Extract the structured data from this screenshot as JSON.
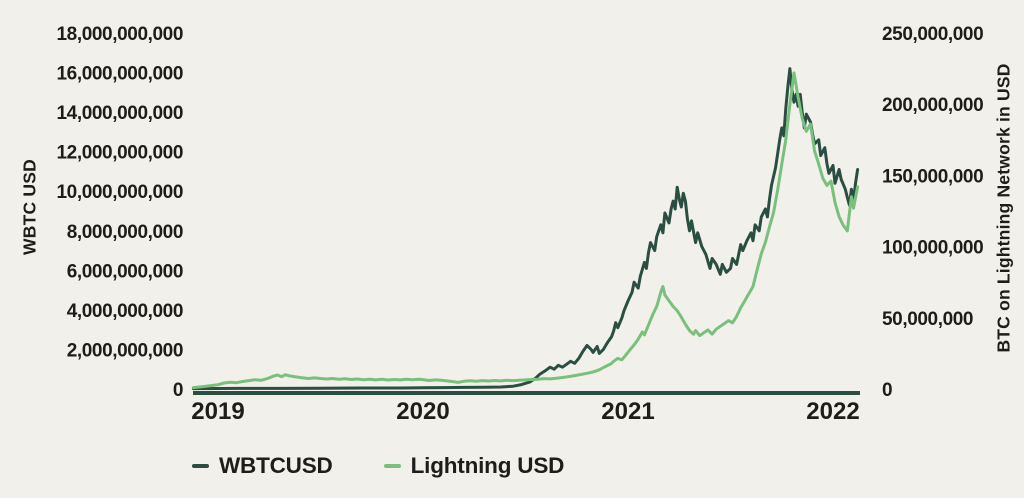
{
  "page": {
    "background_color": "#f2f0ea",
    "text_color": "#1e1d19"
  },
  "chart_data": {
    "type": "line",
    "title": "",
    "grid": false,
    "legend_position": "bottom-left",
    "x_axis": {
      "range": [
        2018.88,
        2022.13
      ],
      "ticks": [
        {
          "value": 2019,
          "label": "2019"
        },
        {
          "value": 2020,
          "label": "2020"
        },
        {
          "value": 2021,
          "label": "2021"
        },
        {
          "value": 2022,
          "label": "2022"
        }
      ]
    },
    "left_axis": {
      "title": "WBTC USD",
      "unit_multiplier": 1000000000,
      "max": 18,
      "ticks": [
        {
          "value": 0,
          "label": "0"
        },
        {
          "value": 2,
          "label": "2,000,000,000"
        },
        {
          "value": 4,
          "label": "4,000,000,000"
        },
        {
          "value": 6,
          "label": "6,000,000,000"
        },
        {
          "value": 8,
          "label": "8,000,000,000"
        },
        {
          "value": 10,
          "label": "10,000,000,000"
        },
        {
          "value": 12,
          "label": "12,000,000,000"
        },
        {
          "value": 14,
          "label": "14,000,000,000"
        },
        {
          "value": 16,
          "label": "16,000,000,000"
        },
        {
          "value": 18,
          "label": "18,000,000,000"
        }
      ]
    },
    "right_axis": {
      "title": "BTC on Lightning Network in USD",
      "unit_multiplier": 1000000,
      "max": 250,
      "ticks": [
        {
          "value": 0,
          "label": "0"
        },
        {
          "value": 50,
          "label": "50,000,000"
        },
        {
          "value": 100,
          "label": "100,000,000"
        },
        {
          "value": 150,
          "label": "150,000,000"
        },
        {
          "value": 200,
          "label": "200,000,000"
        },
        {
          "value": 250,
          "label": "250,000,000"
        }
      ]
    },
    "legend": [
      {
        "label": "WBTCUSD",
        "color": "#2b4e43"
      },
      {
        "label": "Lightning USD",
        "color": "#79c07d"
      }
    ],
    "series": [
      {
        "name": "WBTCUSD",
        "axis": "left",
        "color": "#2b4e43",
        "unit": "USD (billions)",
        "points": [
          [
            2018.88,
            0.02
          ],
          [
            2019.1,
            0.03
          ],
          [
            2019.3,
            0.03
          ],
          [
            2019.5,
            0.04
          ],
          [
            2019.7,
            0.05
          ],
          [
            2019.9,
            0.05
          ],
          [
            2020.0,
            0.06
          ],
          [
            2020.1,
            0.07
          ],
          [
            2020.2,
            0.08
          ],
          [
            2020.3,
            0.09
          ],
          [
            2020.38,
            0.1
          ],
          [
            2020.44,
            0.14
          ],
          [
            2020.48,
            0.22
          ],
          [
            2020.52,
            0.35
          ],
          [
            2020.55,
            0.55
          ],
          [
            2020.57,
            0.75
          ],
          [
            2020.6,
            0.95
          ],
          [
            2020.62,
            1.1
          ],
          [
            2020.64,
            1.0
          ],
          [
            2020.66,
            1.2
          ],
          [
            2020.68,
            1.1
          ],
          [
            2020.7,
            1.25
          ],
          [
            2020.72,
            1.4
          ],
          [
            2020.74,
            1.3
          ],
          [
            2020.76,
            1.55
          ],
          [
            2020.78,
            1.9
          ],
          [
            2020.8,
            2.2
          ],
          [
            2020.82,
            2.0
          ],
          [
            2020.83,
            1.85
          ],
          [
            2020.85,
            2.15
          ],
          [
            2020.86,
            1.8
          ],
          [
            2020.88,
            2.0
          ],
          [
            2020.9,
            2.35
          ],
          [
            2020.92,
            2.65
          ],
          [
            2020.93,
            2.95
          ],
          [
            2020.94,
            3.35
          ],
          [
            2020.95,
            3.1
          ],
          [
            2020.97,
            3.6
          ],
          [
            2020.98,
            3.95
          ],
          [
            2021.0,
            4.45
          ],
          [
            2021.02,
            4.9
          ],
          [
            2021.03,
            5.4
          ],
          [
            2021.05,
            5.1
          ],
          [
            2021.06,
            5.7
          ],
          [
            2021.08,
            6.4
          ],
          [
            2021.09,
            6.1
          ],
          [
            2021.1,
            6.9
          ],
          [
            2021.11,
            7.4
          ],
          [
            2021.13,
            7.0
          ],
          [
            2021.14,
            7.7
          ],
          [
            2021.16,
            8.3
          ],
          [
            2021.17,
            7.9
          ],
          [
            2021.18,
            8.9
          ],
          [
            2021.2,
            8.4
          ],
          [
            2021.21,
            9.1
          ],
          [
            2021.22,
            9.5
          ],
          [
            2021.23,
            9.1
          ],
          [
            2021.24,
            10.2
          ],
          [
            2021.25,
            9.6
          ],
          [
            2021.26,
            9.2
          ],
          [
            2021.27,
            9.9
          ],
          [
            2021.28,
            9.5
          ],
          [
            2021.29,
            8.6
          ],
          [
            2021.3,
            8.0
          ],
          [
            2021.31,
            8.5
          ],
          [
            2021.33,
            7.4
          ],
          [
            2021.34,
            7.9
          ],
          [
            2021.36,
            7.2
          ],
          [
            2021.38,
            6.8
          ],
          [
            2021.4,
            6.1
          ],
          [
            2021.41,
            6.6
          ],
          [
            2021.43,
            6.3
          ],
          [
            2021.45,
            5.8
          ],
          [
            2021.46,
            6.3
          ],
          [
            2021.48,
            5.9
          ],
          [
            2021.5,
            6.1
          ],
          [
            2021.51,
            6.6
          ],
          [
            2021.53,
            6.3
          ],
          [
            2021.55,
            7.3
          ],
          [
            2021.56,
            7.0
          ],
          [
            2021.58,
            7.5
          ],
          [
            2021.6,
            7.9
          ],
          [
            2021.61,
            7.5
          ],
          [
            2021.62,
            8.3
          ],
          [
            2021.64,
            8.0
          ],
          [
            2021.65,
            8.7
          ],
          [
            2021.67,
            9.1
          ],
          [
            2021.68,
            8.7
          ],
          [
            2021.69,
            9.6
          ],
          [
            2021.7,
            10.3
          ],
          [
            2021.72,
            11.2
          ],
          [
            2021.74,
            12.6
          ],
          [
            2021.75,
            13.2
          ],
          [
            2021.76,
            12.8
          ],
          [
            2021.77,
            14.2
          ],
          [
            2021.78,
            15.3
          ],
          [
            2021.79,
            16.2
          ],
          [
            2021.8,
            15.1
          ],
          [
            2021.81,
            14.5
          ],
          [
            2021.82,
            14.9
          ],
          [
            2021.83,
            14.3
          ],
          [
            2021.84,
            14.9
          ],
          [
            2021.85,
            14.0
          ],
          [
            2021.86,
            13.2
          ],
          [
            2021.87,
            13.9
          ],
          [
            2021.89,
            13.5
          ],
          [
            2021.9,
            12.9
          ],
          [
            2021.91,
            12.4
          ],
          [
            2021.93,
            12.6
          ],
          [
            2021.94,
            11.8
          ],
          [
            2021.96,
            12.2
          ],
          [
            2021.97,
            11.4
          ],
          [
            2021.98,
            10.9
          ],
          [
            2022.0,
            11.3
          ],
          [
            2022.01,
            10.4
          ],
          [
            2022.03,
            11.1
          ],
          [
            2022.04,
            10.6
          ],
          [
            2022.06,
            10.1
          ],
          [
            2022.07,
            9.7
          ],
          [
            2022.08,
            9.3
          ],
          [
            2022.09,
            10.1
          ],
          [
            2022.1,
            9.5
          ],
          [
            2022.11,
            10.4
          ],
          [
            2022.12,
            11.1
          ]
        ]
      },
      {
        "name": "Lightning USD",
        "axis": "right",
        "color": "#79c07d",
        "unit": "USD (millions)",
        "points": [
          [
            2018.88,
            1.0
          ],
          [
            2018.92,
            1.6
          ],
          [
            2018.96,
            2.3
          ],
          [
            2019.0,
            3.0
          ],
          [
            2019.03,
            4.2
          ],
          [
            2019.06,
            4.8
          ],
          [
            2019.09,
            4.4
          ],
          [
            2019.12,
            5.3
          ],
          [
            2019.15,
            5.9
          ],
          [
            2019.18,
            6.5
          ],
          [
            2019.21,
            6.1
          ],
          [
            2019.24,
            7.3
          ],
          [
            2019.27,
            9.0
          ],
          [
            2019.29,
            9.8
          ],
          [
            2019.31,
            8.7
          ],
          [
            2019.33,
            10.0
          ],
          [
            2019.35,
            9.2
          ],
          [
            2019.38,
            8.5
          ],
          [
            2019.41,
            7.9
          ],
          [
            2019.44,
            7.4
          ],
          [
            2019.47,
            7.8
          ],
          [
            2019.5,
            7.4
          ],
          [
            2019.53,
            7.0
          ],
          [
            2019.56,
            7.4
          ],
          [
            2019.59,
            6.9
          ],
          [
            2019.62,
            7.2
          ],
          [
            2019.65,
            6.7
          ],
          [
            2019.68,
            7.0
          ],
          [
            2019.71,
            6.5
          ],
          [
            2019.74,
            6.9
          ],
          [
            2019.77,
            6.4
          ],
          [
            2019.8,
            6.8
          ],
          [
            2019.83,
            6.3
          ],
          [
            2019.86,
            6.7
          ],
          [
            2019.89,
            6.4
          ],
          [
            2019.92,
            6.8
          ],
          [
            2019.95,
            6.5
          ],
          [
            2019.98,
            6.8
          ],
          [
            2020.0,
            6.6
          ],
          [
            2020.03,
            6.0
          ],
          [
            2020.06,
            6.4
          ],
          [
            2020.09,
            6.1
          ],
          [
            2020.12,
            5.6
          ],
          [
            2020.15,
            5.1
          ],
          [
            2020.17,
            4.6
          ],
          [
            2020.2,
            5.4
          ],
          [
            2020.23,
            5.8
          ],
          [
            2020.26,
            5.5
          ],
          [
            2020.29,
            5.9
          ],
          [
            2020.32,
            5.6
          ],
          [
            2020.35,
            6.0
          ],
          [
            2020.38,
            5.7
          ],
          [
            2020.41,
            6.1
          ],
          [
            2020.44,
            5.9
          ],
          [
            2020.47,
            6.2
          ],
          [
            2020.5,
            6.4
          ],
          [
            2020.53,
            6.7
          ],
          [
            2020.56,
            6.9
          ],
          [
            2020.59,
            7.3
          ],
          [
            2020.62,
            7.1
          ],
          [
            2020.65,
            7.6
          ],
          [
            2020.68,
            8.1
          ],
          [
            2020.71,
            8.7
          ],
          [
            2020.74,
            9.4
          ],
          [
            2020.77,
            10.2
          ],
          [
            2020.8,
            11.0
          ],
          [
            2020.83,
            12.0
          ],
          [
            2020.86,
            13.5
          ],
          [
            2020.88,
            15.0
          ],
          [
            2020.9,
            16.5
          ],
          [
            2020.92,
            18.0
          ],
          [
            2020.93,
            19.5
          ],
          [
            2020.95,
            21.5
          ],
          [
            2020.97,
            20.5
          ],
          [
            2020.99,
            24.0
          ],
          [
            2021.01,
            27.5
          ],
          [
            2021.03,
            31.0
          ],
          [
            2021.05,
            35.0
          ],
          [
            2021.07,
            40.0
          ],
          [
            2021.08,
            38.0
          ],
          [
            2021.1,
            45.0
          ],
          [
            2021.12,
            52.0
          ],
          [
            2021.14,
            58.0
          ],
          [
            2021.15,
            63.0
          ],
          [
            2021.16,
            68.0
          ],
          [
            2021.17,
            72.0
          ],
          [
            2021.18,
            66.0
          ],
          [
            2021.2,
            62.0
          ],
          [
            2021.22,
            58.0
          ],
          [
            2021.24,
            55.0
          ],
          [
            2021.26,
            50.5
          ],
          [
            2021.28,
            45.5
          ],
          [
            2021.3,
            41.0
          ],
          [
            2021.32,
            38.5
          ],
          [
            2021.33,
            41.0
          ],
          [
            2021.35,
            37.5
          ],
          [
            2021.37,
            39.5
          ],
          [
            2021.39,
            41.5
          ],
          [
            2021.41,
            38.5
          ],
          [
            2021.43,
            42.0
          ],
          [
            2021.45,
            44.0
          ],
          [
            2021.47,
            46.0
          ],
          [
            2021.49,
            48.0
          ],
          [
            2021.51,
            46.5
          ],
          [
            2021.53,
            51.0
          ],
          [
            2021.55,
            57.0
          ],
          [
            2021.57,
            62.0
          ],
          [
            2021.59,
            67.0
          ],
          [
            2021.61,
            72.0
          ],
          [
            2021.63,
            84.0
          ],
          [
            2021.65,
            95.0
          ],
          [
            2021.67,
            103.0
          ],
          [
            2021.69,
            114.0
          ],
          [
            2021.71,
            124.0
          ],
          [
            2021.73,
            140.0
          ],
          [
            2021.75,
            158.0
          ],
          [
            2021.77,
            175.0
          ],
          [
            2021.79,
            200.0
          ],
          [
            2021.81,
            222.0
          ],
          [
            2021.83,
            205.0
          ],
          [
            2021.85,
            190.0
          ],
          [
            2021.87,
            181.0
          ],
          [
            2021.89,
            186.0
          ],
          [
            2021.91,
            167.0
          ],
          [
            2021.93,
            158.0
          ],
          [
            2021.95,
            148.0
          ],
          [
            2021.97,
            143.0
          ],
          [
            2021.99,
            146.0
          ],
          [
            2022.01,
            131.0
          ],
          [
            2022.03,
            121.0
          ],
          [
            2022.05,
            115.0
          ],
          [
            2022.07,
            111.0
          ],
          [
            2022.09,
            135.0
          ],
          [
            2022.1,
            127.0
          ],
          [
            2022.12,
            142.0
          ]
        ]
      }
    ]
  }
}
